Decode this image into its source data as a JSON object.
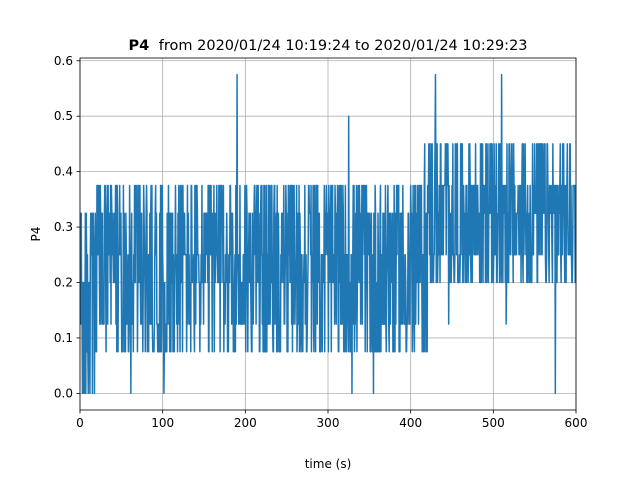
{
  "chart_data": {
    "type": "line",
    "title_series": "P4",
    "title_range": "from 2020/01/24 10:19:24 to 2020/01/24 10:29:23",
    "xlabel": "time (s)",
    "ylabel": "P4",
    "xlim": [
      0,
      600
    ],
    "ylim": [
      -0.03,
      0.605
    ],
    "xticks": [
      0,
      100,
      200,
      300,
      400,
      500,
      600
    ],
    "xtick_labels": [
      "0",
      "100",
      "200",
      "300",
      "400",
      "500",
      "600"
    ],
    "yticks": [
      0.0,
      0.1,
      0.2,
      0.3,
      0.4,
      0.5,
      0.6
    ],
    "ytick_labels": [
      "0.0",
      "0.1",
      "0.2",
      "0.3",
      "0.4",
      "0.5",
      "0.6"
    ],
    "grid": true,
    "line_color": "#1f77b4",
    "levels": [
      0.0,
      0.075,
      0.125,
      0.2,
      0.25,
      0.325,
      0.375,
      0.45,
      0.5,
      0.575
    ],
    "sampling_interval_s": 0.5,
    "segments": [
      {
        "t_start": 0,
        "t_end": 20,
        "low": 0.0,
        "high": 0.325
      },
      {
        "t_start": 20,
        "t_end": 130,
        "low": 0.075,
        "high": 0.375
      },
      {
        "t_start": 130,
        "t_end": 420,
        "low": 0.075,
        "high": 0.375
      },
      {
        "t_start": 420,
        "t_end": 600,
        "low": 0.2,
        "high": 0.45
      }
    ],
    "spikes": [
      {
        "t": 7,
        "value": 0.0
      },
      {
        "t": 190,
        "value": 0.575
      },
      {
        "t": 325,
        "value": 0.5
      },
      {
        "t": 355,
        "value": 0.0
      },
      {
        "t": 430,
        "value": 0.575
      },
      {
        "t": 510,
        "value": 0.575
      },
      {
        "t": 575,
        "value": 0.0
      }
    ]
  }
}
